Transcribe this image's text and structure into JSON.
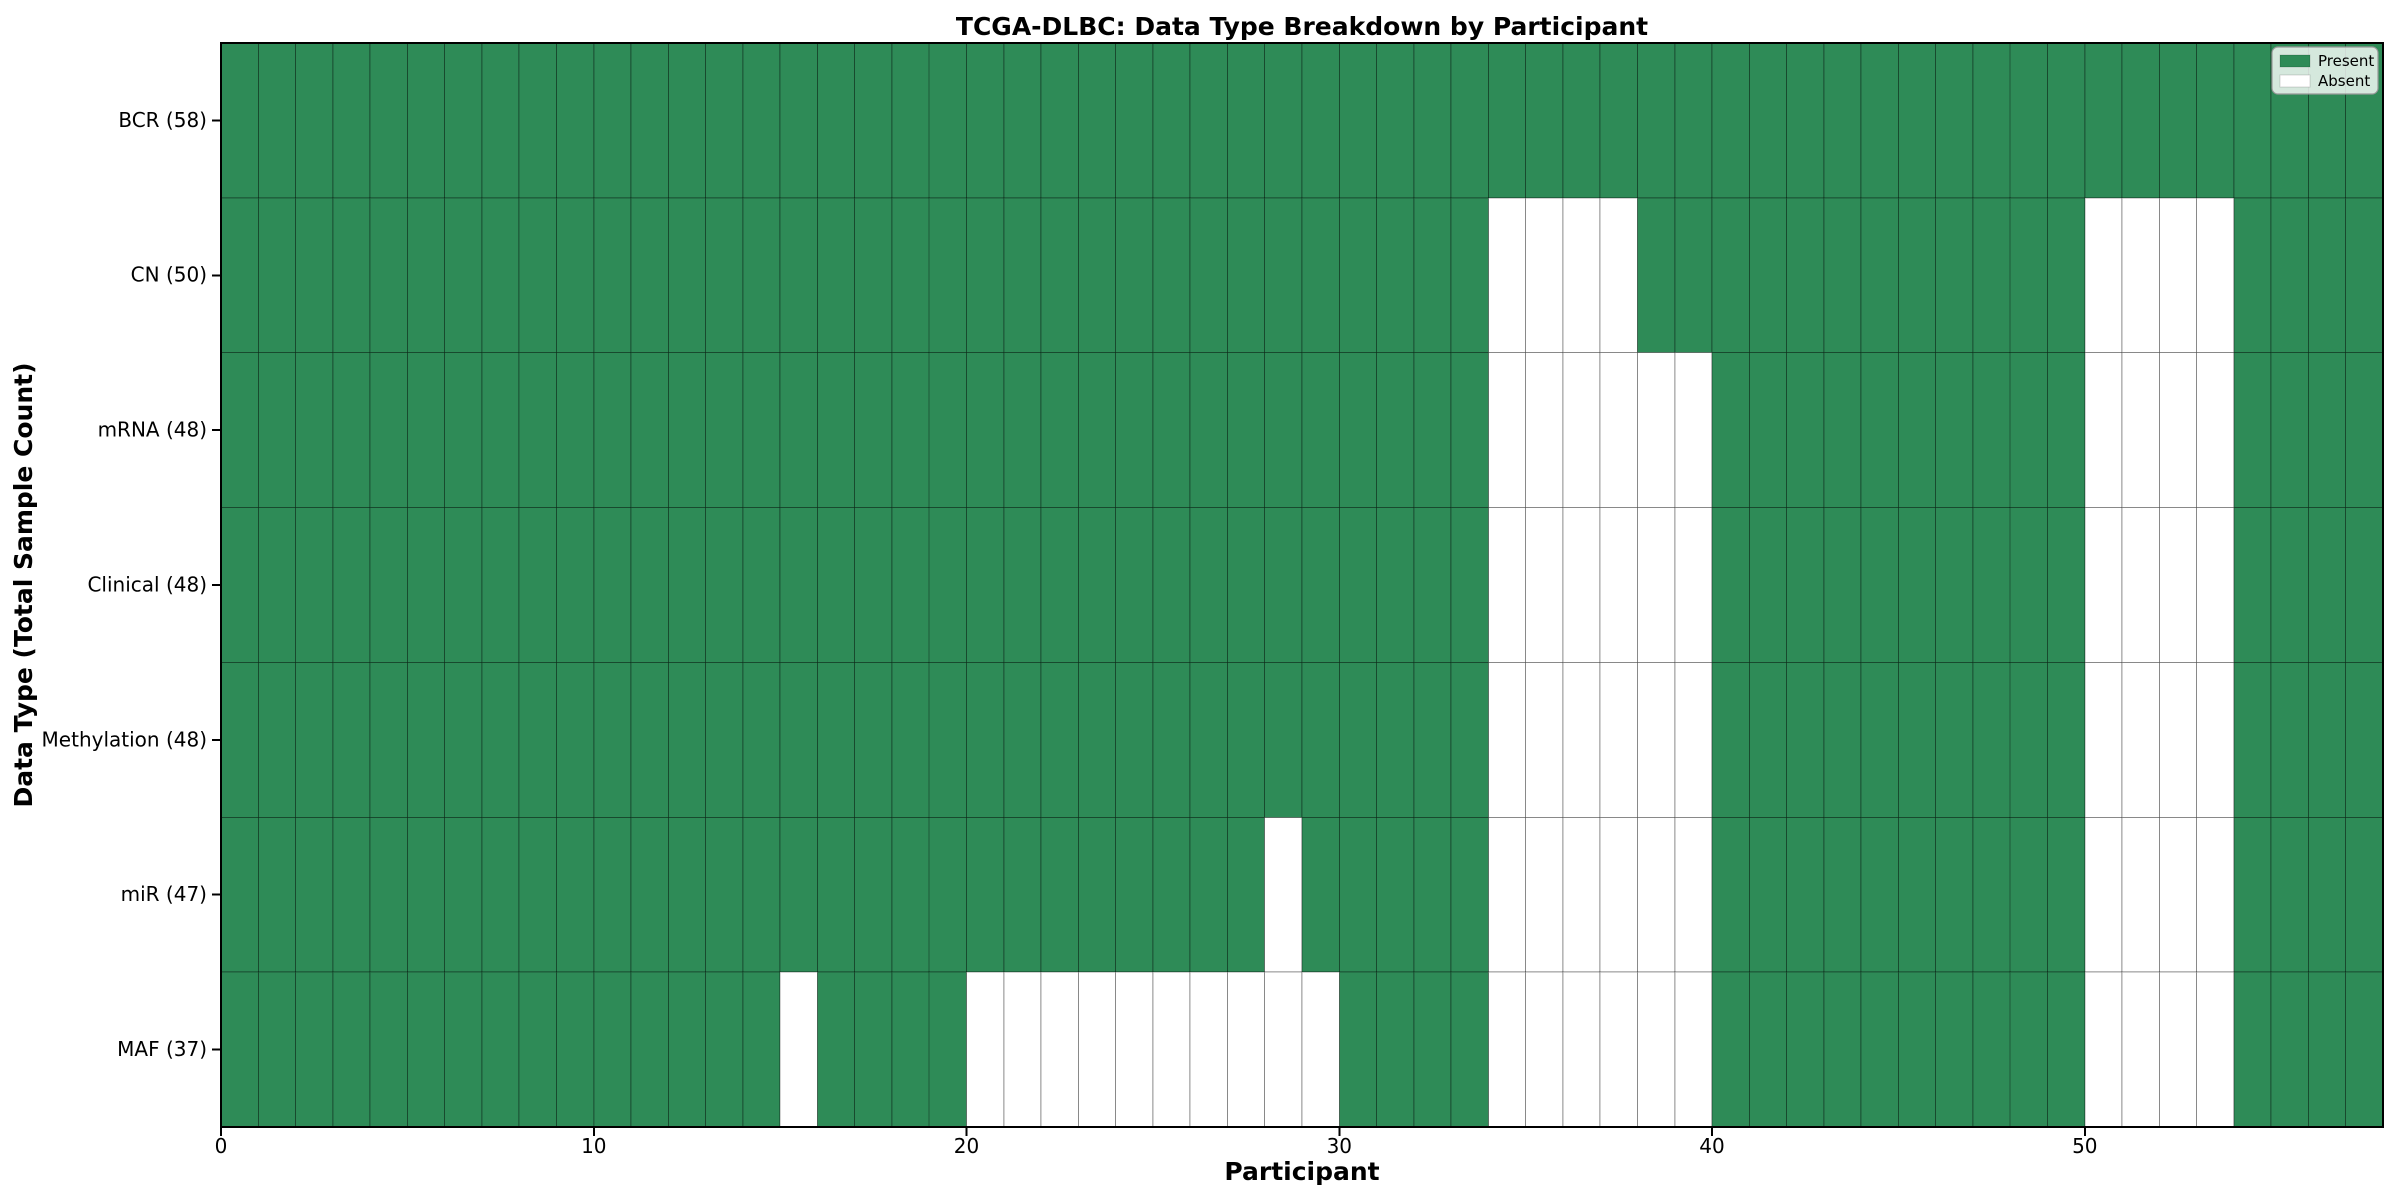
{
  "chart_data": {
    "type": "heatmap",
    "title": "TCGA-DLBC: Data Type Breakdown by Participant",
    "xlabel": "Participant",
    "ylabel": "Data Type (Total Sample Count)",
    "x_ticks": [
      0,
      10,
      20,
      30,
      40,
      50
    ],
    "x_range": [
      0,
      58
    ],
    "n_participants": 58,
    "rows": [
      {
        "name": "BCR",
        "label": "BCR (58)",
        "total": 58,
        "absent": []
      },
      {
        "name": "CN",
        "label": "CN (50)",
        "total": 50,
        "absent": [
          34,
          35,
          36,
          37,
          50,
          51,
          52,
          53
        ]
      },
      {
        "name": "mRNA",
        "label": "mRNA (48)",
        "total": 48,
        "absent": [
          34,
          35,
          36,
          37,
          38,
          39,
          50,
          51,
          52,
          53
        ]
      },
      {
        "name": "Clinical",
        "label": "Clinical (48)",
        "total": 48,
        "absent": [
          34,
          35,
          36,
          37,
          38,
          39,
          50,
          51,
          52,
          53
        ]
      },
      {
        "name": "Methylation",
        "label": "Methylation (48)",
        "total": 48,
        "absent": [
          34,
          35,
          36,
          37,
          38,
          39,
          50,
          51,
          52,
          53
        ]
      },
      {
        "name": "miR",
        "label": "miR (47)",
        "total": 47,
        "absent": [
          28,
          34,
          35,
          36,
          37,
          38,
          39,
          50,
          51,
          52,
          53
        ]
      },
      {
        "name": "MAF",
        "label": "MAF (37)",
        "total": 37,
        "absent": [
          15,
          20,
          21,
          22,
          23,
          24,
          25,
          26,
          27,
          28,
          29,
          34,
          35,
          36,
          37,
          38,
          39,
          50,
          51,
          52,
          53
        ]
      }
    ],
    "legend": {
      "position": "upper right",
      "items": [
        {
          "label": "Present",
          "color": "#2e8b57"
        },
        {
          "label": "Absent",
          "color": "#ffffff"
        }
      ]
    },
    "colors": {
      "present": "#2e8b57",
      "absent": "#ffffff",
      "cell_edge": "rgba(0,0,0,0.35)",
      "spine": "#000000",
      "legend_edge": "#999999",
      "legend_bg": "rgba(255,255,255,0.8)"
    }
  }
}
